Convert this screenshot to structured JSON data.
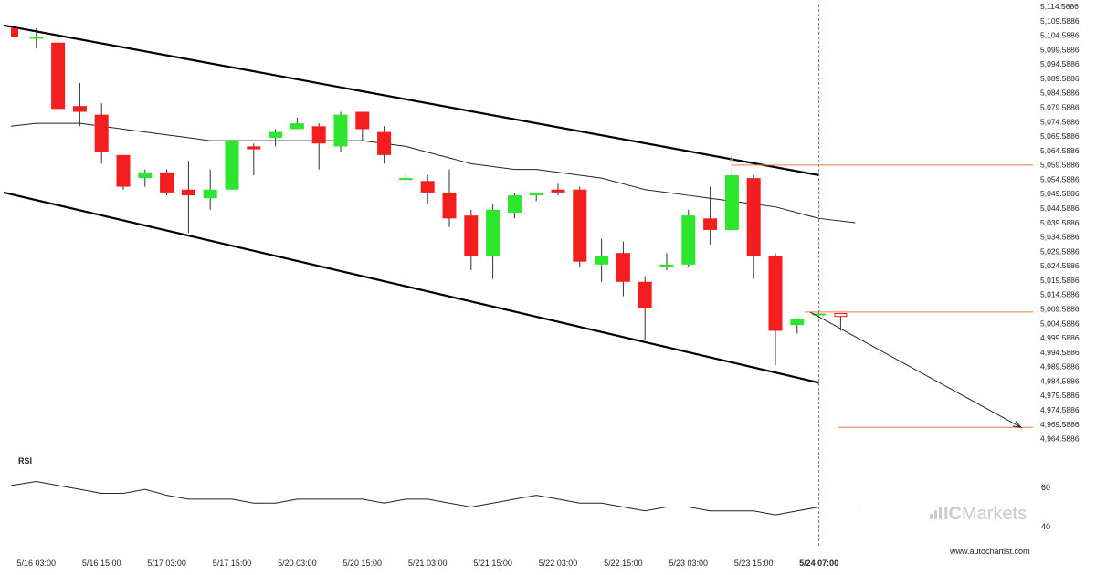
{
  "chart_data": [
    {
      "type": "candlestick",
      "title": "",
      "ylim": [
        4962,
        5116
      ],
      "y_ticks": [
        "5,114.5886",
        "5,109.5886",
        "5,104.5886",
        "5,099.5886",
        "5,094.5886",
        "5,089.5886",
        "5,084.5886",
        "5,079.5886",
        "5,074.5886",
        "5,069.5886",
        "5,064.5886",
        "5,059.5886",
        "5,054.5886",
        "5,049.5886",
        "5,044.5886",
        "5,039.5886",
        "5,034.5886",
        "5,029.5886",
        "5,024.5886",
        "5,019.5886",
        "5,014.5886",
        "5,009.5886",
        "5,004.5886",
        "4,999.5886",
        "4,994.5886",
        "4,989.5886",
        "4,984.5886",
        "4,979.5886",
        "4,974.5886",
        "4,969.5886",
        "4,964.5886"
      ],
      "x_ticks": [
        {
          "i": 1,
          "label": "5/16 03:00"
        },
        {
          "i": 4,
          "label": "5/16 15:00"
        },
        {
          "i": 7,
          "label": "5/17 03:00"
        },
        {
          "i": 10,
          "label": "5/17 15:00"
        },
        {
          "i": 13,
          "label": "5/20 03:00"
        },
        {
          "i": 16,
          "label": "5/20 15:00"
        },
        {
          "i": 19,
          "label": "5/21 03:00"
        },
        {
          "i": 22,
          "label": "5/21 15:00"
        },
        {
          "i": 25,
          "label": "5/22 03:00"
        },
        {
          "i": 28,
          "label": "5/22 15:00"
        },
        {
          "i": 31,
          "label": "5/23 03:00"
        },
        {
          "i": 34,
          "label": "5/23 15:00"
        },
        {
          "i": 37,
          "label": "5/24 07:00",
          "bold": true
        }
      ],
      "candles": [
        {
          "o": 5107,
          "h": 5107,
          "l": 5104,
          "c": 5104
        },
        {
          "o": 5104,
          "h": 5107,
          "l": 5100,
          "c": 5104
        },
        {
          "o": 5102,
          "h": 5106,
          "l": 5079,
          "c": 5079
        },
        {
          "o": 5080,
          "h": 5088,
          "l": 5073,
          "c": 5078
        },
        {
          "o": 5077,
          "h": 5081,
          "l": 5060,
          "c": 5064
        },
        {
          "o": 5063,
          "h": 5063,
          "l": 5051,
          "c": 5052
        },
        {
          "o": 5055,
          "h": 5058,
          "l": 5052,
          "c": 5057
        },
        {
          "o": 5057,
          "h": 5058,
          "l": 5049,
          "c": 5050
        },
        {
          "o": 5051,
          "h": 5061,
          "l": 5036,
          "c": 5049
        },
        {
          "o": 5048,
          "h": 5058,
          "l": 5044,
          "c": 5051
        },
        {
          "o": 5051,
          "h": 5068,
          "l": 5051,
          "c": 5068
        },
        {
          "o": 5066,
          "h": 5067,
          "l": 5056,
          "c": 5065
        },
        {
          "o": 5069,
          "h": 5072,
          "l": 5066,
          "c": 5071
        },
        {
          "o": 5072,
          "h": 5076,
          "l": 5072,
          "c": 5074
        },
        {
          "o": 5073,
          "h": 5074,
          "l": 5058,
          "c": 5067
        },
        {
          "o": 5066,
          "h": 5078,
          "l": 5064,
          "c": 5077
        },
        {
          "o": 5078,
          "h": 5078,
          "l": 5068,
          "c": 5072
        },
        {
          "o": 5071,
          "h": 5073,
          "l": 5060,
          "c": 5063
        },
        {
          "o": 5055,
          "h": 5057,
          "l": 5053,
          "c": 5055
        },
        {
          "o": 5054,
          "h": 5056,
          "l": 5046,
          "c": 5050
        },
        {
          "o": 5050,
          "h": 5058,
          "l": 5038,
          "c": 5041
        },
        {
          "o": 5042,
          "h": 5044,
          "l": 5023,
          "c": 5028
        },
        {
          "o": 5028,
          "h": 5046,
          "l": 5020,
          "c": 5044
        },
        {
          "o": 5043,
          "h": 5050,
          "l": 5041,
          "c": 5049
        },
        {
          "o": 5049,
          "h": 5050,
          "l": 5047,
          "c": 5050
        },
        {
          "o": 5051,
          "h": 5053,
          "l": 5049,
          "c": 5050
        },
        {
          "o": 5051,
          "h": 5052,
          "l": 5024,
          "c": 5026
        },
        {
          "o": 5025,
          "h": 5034,
          "l": 5019,
          "c": 5028
        },
        {
          "o": 5029,
          "h": 5033,
          "l": 5014,
          "c": 5019
        },
        {
          "o": 5019,
          "h": 5021,
          "l": 4999,
          "c": 5010
        },
        {
          "o": 5024,
          "h": 5029,
          "l": 5023,
          "c": 5025
        },
        {
          "o": 5025,
          "h": 5044,
          "l": 5024,
          "c": 5042
        },
        {
          "o": 5041,
          "h": 5052,
          "l": 5032,
          "c": 5037
        },
        {
          "o": 5037,
          "h": 5061,
          "l": 5037,
          "c": 5056
        },
        {
          "o": 5055,
          "h": 5056,
          "l": 5020,
          "c": 5028
        },
        {
          "o": 5028,
          "h": 5029,
          "l": 4990,
          "c": 5002
        },
        {
          "o": 5004,
          "h": 5006,
          "l": 5001,
          "c": 5006
        },
        {
          "o": 5008,
          "h": 5009,
          "l": 5008,
          "c": 5008
        },
        {
          "o": 5008,
          "h": 5008,
          "l": 5002,
          "c": 5007
        }
      ],
      "moving_average": [
        5073,
        5074,
        5074,
        5074,
        5073,
        5072,
        5071,
        5070,
        5069,
        5068,
        5068,
        5068,
        5068,
        5068,
        5068,
        5068,
        5068,
        5067,
        5066,
        5064,
        5062,
        5060,
        5059,
        5058,
        5058,
        5057,
        5056,
        5055,
        5053,
        5051,
        5050,
        5049,
        5048,
        5047,
        5046,
        5045,
        5043,
        5041,
        5039.5
      ],
      "channel_upper": {
        "x1": -0.5,
        "y1": 5108,
        "x2": 37,
        "y2": 5056
      },
      "channel_lower": {
        "x1": -0.5,
        "y1": 5050,
        "x2": 37,
        "y2": 4984
      },
      "resistance_level": 5059.5,
      "current_level": 5008.5,
      "target_level": 4968.5,
      "projection_start": {
        "x": 36.6,
        "y": 5008.5
      },
      "projection_end": {
        "x": 46,
        "y": 4968.5
      },
      "resistance_marker": "A",
      "current_index": 37,
      "colors": {
        "bull": "#2ee62e",
        "bear": "#f41e1e",
        "channel": "#000000",
        "level": "#f07a45",
        "ma": "#222222",
        "divider": "#777777"
      }
    },
    {
      "type": "line",
      "title": "RSI",
      "ylim": [
        35,
        70
      ],
      "y_ticks": [
        "60",
        "40"
      ],
      "values": [
        61,
        63,
        61,
        59,
        57,
        57,
        59,
        56,
        54,
        54,
        54,
        52,
        52,
        54,
        54,
        54,
        54,
        52,
        54,
        54,
        52,
        50,
        52,
        54,
        56,
        54,
        52,
        52,
        50,
        48,
        50,
        50,
        48,
        48,
        48,
        46,
        48,
        50,
        50
      ]
    }
  ],
  "watermark": {
    "brand_ic": "IC",
    "brand_markets": "Markets"
  },
  "website": "www.autochartist.com"
}
